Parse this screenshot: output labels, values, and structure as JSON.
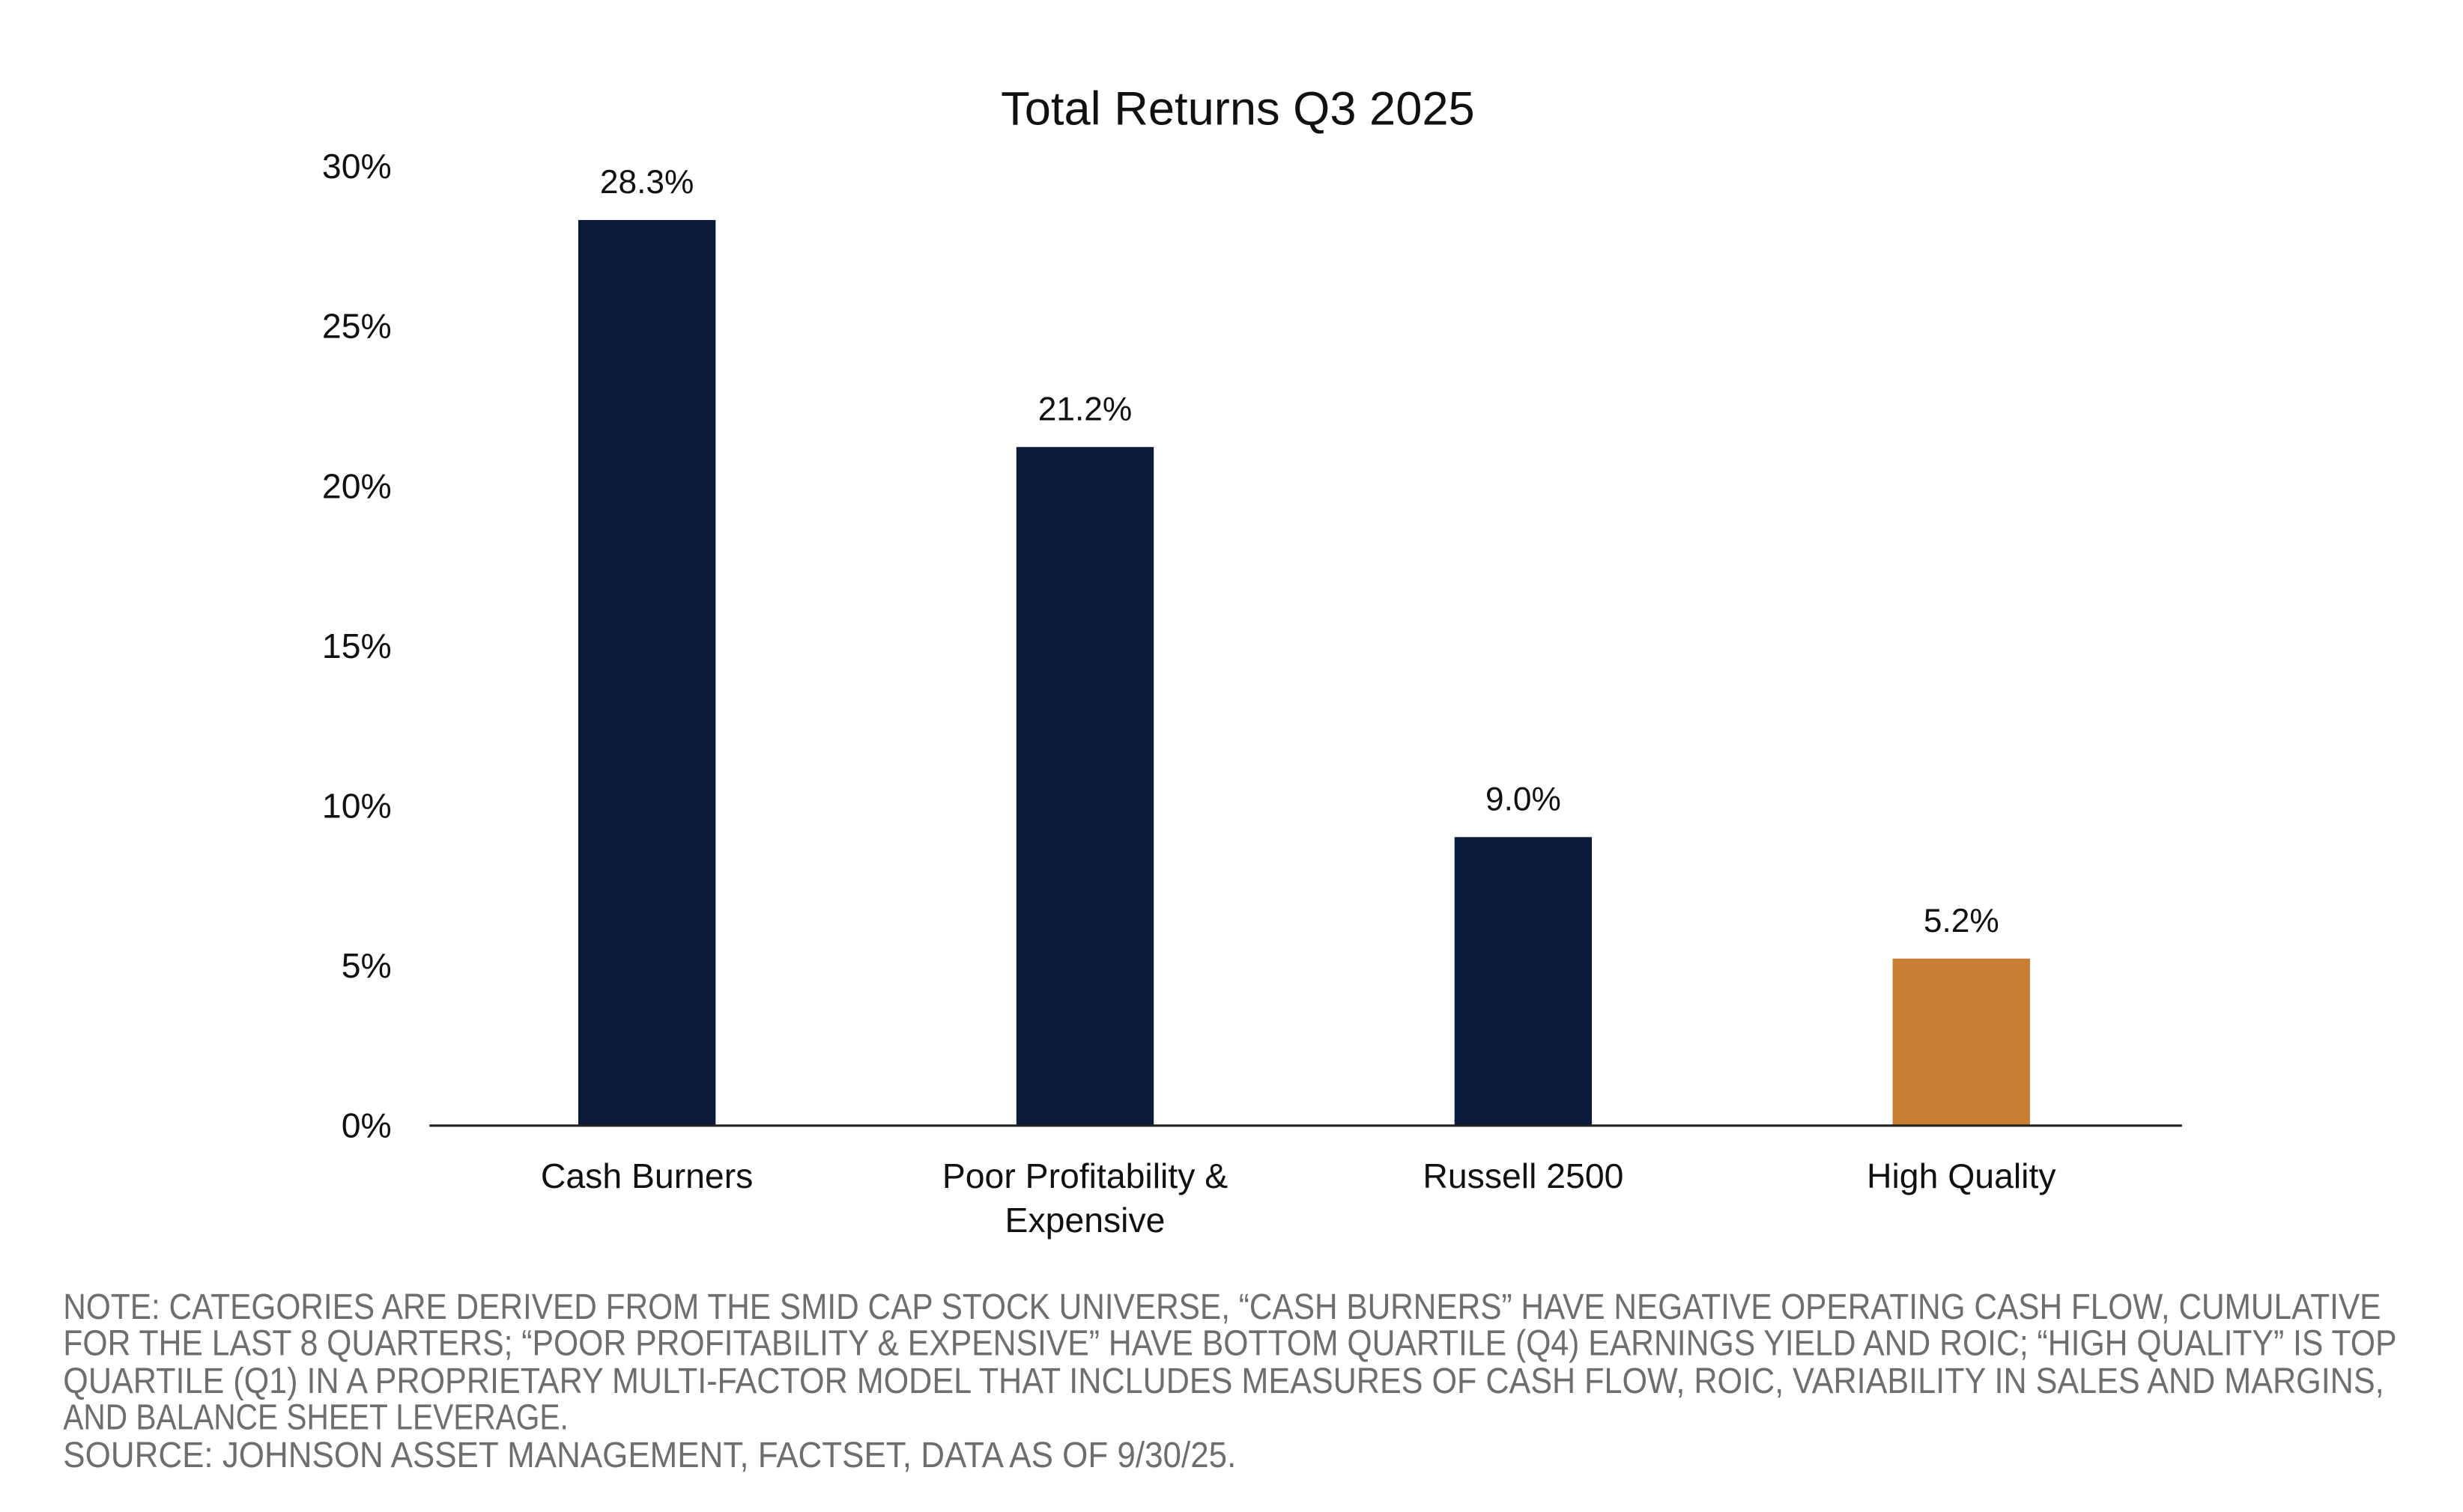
{
  "chart_data": {
    "type": "bar",
    "title": "Total Returns Q3 2025",
    "categories": [
      [
        "Cash Burners"
      ],
      [
        "Poor Profitability &",
        "Expensive"
      ],
      [
        "Russell 2500"
      ],
      [
        "High Quality"
      ]
    ],
    "values": [
      28.3,
      21.2,
      9.0,
      5.2
    ],
    "value_labels": [
      "28.3%",
      "21.2%",
      "9.0%",
      "5.2%"
    ],
    "colors": [
      "#0a1a38",
      "#0a1a38",
      "#0a1a38",
      "#c87f33"
    ],
    "ylim": [
      0,
      30
    ],
    "yticks": [
      0,
      5,
      10,
      15,
      20,
      25,
      30
    ],
    "ytick_labels": [
      "0%",
      "5%",
      "10%",
      "15%",
      "20%",
      "25%",
      "30%"
    ],
    "xlabel": "",
    "ylabel": "",
    "grid": false
  },
  "footnote": {
    "note_lines": [
      "NOTE: CATEGORIES ARE DERIVED FROM THE SMID CAP STOCK UNIVERSE, “CASH BURNERS” HAVE NEGATIVE OPERATING CASH FLOW, CUMULATIVE",
      "FOR THE LAST 8 QUARTERS; “POOR PROFITABILITY & EXPENSIVE” HAVE BOTTOM QUARTILE (Q4) EARNINGS YIELD AND ROIC; “HIGH QUALITY” IS TOP",
      "QUARTILE (Q1) IN A PROPRIETARY MULTI-FACTOR MODEL THAT INCLUDES MEASURES OF CASH FLOW, ROIC, VARIABILITY IN SALES AND MARGINS,",
      "AND BALANCE SHEET LEVERAGE."
    ],
    "source": "SOURCE: JOHNSON ASSET MANAGEMENT, FACTSET, DATA AS OF 9/30/25."
  }
}
